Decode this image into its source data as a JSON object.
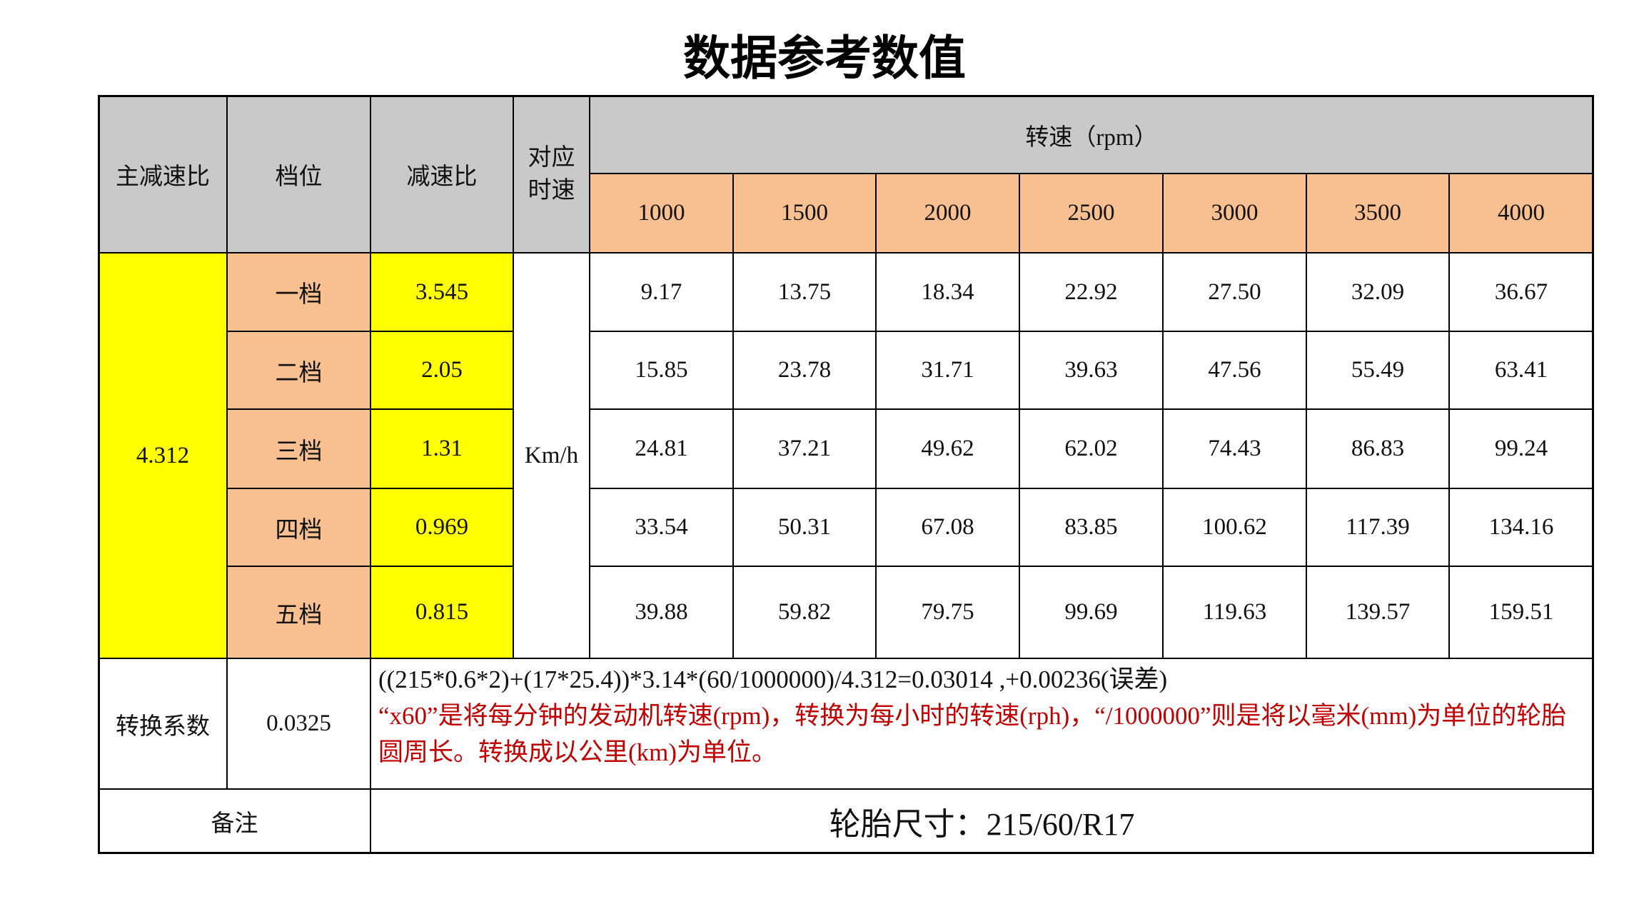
{
  "title": "数据参考数值",
  "table": {
    "header": {
      "main_ratio": "主减速比",
      "gear": "档位",
      "ratio": "减速比",
      "speed": [
        "对应",
        "时速"
      ],
      "rpm_group": "转速（rpm）",
      "rpms": [
        "1000",
        "1500",
        "2000",
        "2500",
        "3000",
        "3500",
        "4000"
      ]
    },
    "main_ratio": "4.312",
    "unit": "Km/h",
    "rows": [
      {
        "gear": "一档",
        "ratio": "3.545",
        "speeds": [
          "9.17",
          "13.75",
          "18.34",
          "22.92",
          "27.50",
          "32.09",
          "36.67"
        ]
      },
      {
        "gear": "二档",
        "ratio": "2.05",
        "speeds": [
          "15.85",
          "23.78",
          "31.71",
          "39.63",
          "47.56",
          "55.49",
          "63.41"
        ]
      },
      {
        "gear": "三档",
        "ratio": "1.31",
        "speeds": [
          "24.81",
          "37.21",
          "49.62",
          "62.02",
          "74.43",
          "86.83",
          "99.24"
        ]
      },
      {
        "gear": "四档",
        "ratio": "0.969",
        "speeds": [
          "33.54",
          "50.31",
          "67.08",
          "83.85",
          "100.62",
          "117.39",
          "134.16"
        ]
      },
      {
        "gear": "五档",
        "ratio": "0.815",
        "speeds": [
          "39.88",
          "59.82",
          "79.75",
          "99.69",
          "119.63",
          "139.57",
          "159.51"
        ]
      }
    ],
    "factor_label": "转换系数",
    "factor": "0.0325",
    "formula": "((215*0.6*2)+(17*25.4))*3.14*(60/1000000)/4.312=0.03014 ,+0.00236(误差)",
    "explanation": "“x60”是将每分钟的发动机转速(rpm)，转换为每小时的转速(rph)，“/1000000”则是将以毫米(mm)为单位的轮胎圆周长。转换成以公里(km)为单位。",
    "note_label": "备注",
    "note": "轮胎尺寸：215/60/R17"
  }
}
